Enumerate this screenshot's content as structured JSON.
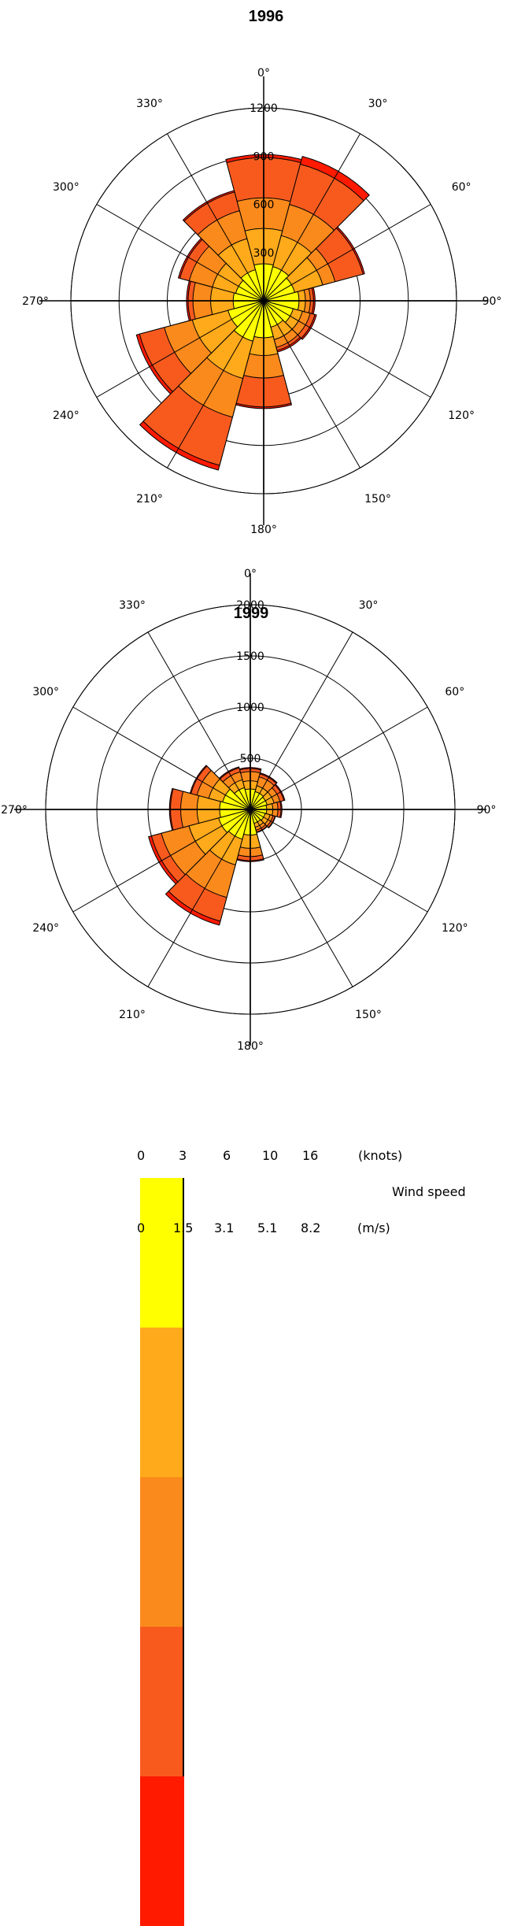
{
  "chart_data": [
    {
      "type": "polar-bar",
      "title": "1996",
      "radial_ticks": [
        300,
        600,
        900,
        1200
      ],
      "radial_max": 1200,
      "angle_labels": [
        "0°",
        "30°",
        "60°",
        "90°",
        "120°",
        "150°",
        "180°",
        "210°",
        "240°",
        "270°",
        "300°",
        "330°"
      ],
      "sector_width_deg": 30,
      "directions": [
        0,
        30,
        60,
        90,
        120,
        150,
        180,
        210,
        240,
        270,
        300,
        330
      ],
      "series": [
        {
          "values": [
            230,
            220,
            200,
            220,
            190,
            170,
            230,
            260,
            230,
            190,
            180,
            200
          ]
        },
        {
          "values": [
            450,
            420,
            380,
            260,
            250,
            250,
            340,
            500,
            460,
            330,
            330,
            400
          ]
        },
        {
          "values": [
            640,
            620,
            460,
            290,
            300,
            300,
            480,
            750,
            640,
            440,
            480,
            580
          ]
        },
        {
          "values": [
            890,
            880,
            640,
            310,
            330,
            320,
            660,
            1060,
            800,
            470,
            540,
            700
          ]
        },
        {
          "values": [
            910,
            930,
            650,
            320,
            340,
            330,
            670,
            1090,
            820,
            480,
            550,
            710
          ]
        }
      ]
    },
    {
      "type": "polar-bar",
      "title": "1999",
      "radial_ticks": [
        500,
        1000,
        1500,
        2000
      ],
      "radial_max": 2000,
      "angle_labels": [
        "0°",
        "30°",
        "60°",
        "90°",
        "120°",
        "150°",
        "180°",
        "210°",
        "240°",
        "270°",
        "300°",
        "330°"
      ],
      "sector_width_deg": 30,
      "directions": [
        0,
        30,
        60,
        90,
        120,
        150,
        180,
        210,
        240,
        270,
        300,
        330
      ],
      "series": [
        {
          "values": [
            200,
            180,
            170,
            160,
            150,
            140,
            250,
            300,
            320,
            300,
            280,
            220
          ]
        },
        {
          "values": [
            280,
            240,
            240,
            220,
            200,
            180,
            380,
            560,
            620,
            520,
            420,
            300
          ]
        },
        {
          "values": [
            370,
            330,
            300,
            270,
            230,
            210,
            460,
            890,
            900,
            680,
            540,
            380
          ]
        },
        {
          "values": [
            400,
            360,
            340,
            300,
            250,
            230,
            500,
            1130,
            1000,
            780,
            600,
            420
          ]
        },
        {
          "values": [
            410,
            370,
            350,
            310,
            255,
            235,
            510,
            1170,
            1030,
            790,
            610,
            430
          ]
        }
      ]
    }
  ],
  "colors": [
    "#ffff00",
    "#ffaa1a",
    "#fb8a1c",
    "#f85a1e",
    "#ff1a00"
  ],
  "legend": {
    "knots_ticks": [
      "0",
      "3",
      "6",
      "10",
      "16"
    ],
    "knots_unit": "(knots)",
    "ms_ticks": [
      "0",
      "1.5",
      "3.1",
      "5.1",
      "8.2"
    ],
    "ms_unit": "(m/s)",
    "label": "Wind speed"
  }
}
